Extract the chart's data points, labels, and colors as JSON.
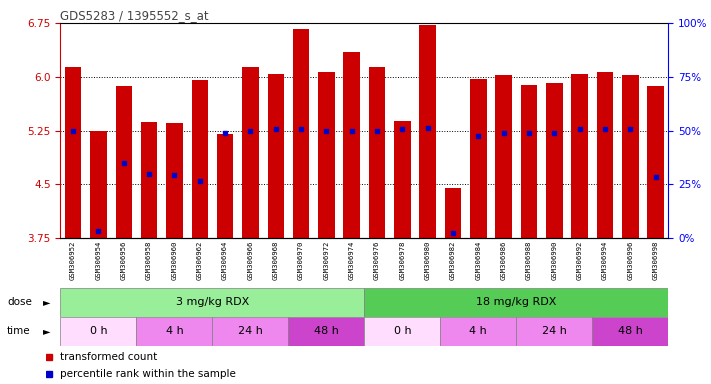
{
  "title": "GDS5283 / 1395552_s_at",
  "samples": [
    "GSM306952",
    "GSM306954",
    "GSM306956",
    "GSM306958",
    "GSM306960",
    "GSM306962",
    "GSM306964",
    "GSM306966",
    "GSM306968",
    "GSM306970",
    "GSM306972",
    "GSM306974",
    "GSM306976",
    "GSM306978",
    "GSM306980",
    "GSM306982",
    "GSM306984",
    "GSM306986",
    "GSM306988",
    "GSM306990",
    "GSM306992",
    "GSM306994",
    "GSM306996",
    "GSM306998"
  ],
  "bar_heights": [
    6.13,
    5.25,
    5.87,
    5.37,
    5.36,
    5.95,
    5.2,
    6.13,
    6.04,
    6.67,
    6.07,
    6.35,
    6.14,
    5.38,
    6.72,
    4.45,
    5.97,
    6.02,
    5.88,
    5.92,
    6.04,
    6.07,
    6.02,
    5.87
  ],
  "blue_dot_y": [
    5.25,
    3.85,
    4.8,
    4.65,
    4.63,
    4.55,
    5.22,
    5.25,
    5.27,
    5.27,
    5.25,
    5.25,
    5.25,
    5.27,
    5.28,
    3.82,
    5.18,
    5.22,
    5.22,
    5.22,
    5.27,
    5.27,
    5.27,
    4.6
  ],
  "y_min": 3.75,
  "y_max": 6.75,
  "y_ticks": [
    3.75,
    4.5,
    5.25,
    6.0,
    6.75
  ],
  "right_y_ticks": [
    0,
    25,
    50,
    75,
    100
  ],
  "bar_color": "#cc0000",
  "dot_color": "#0000cc",
  "dose_groups": [
    {
      "label": "3 mg/kg RDX",
      "start": 0,
      "end": 12,
      "color": "#99ee99"
    },
    {
      "label": "18 mg/kg RDX",
      "start": 12,
      "end": 24,
      "color": "#55cc55"
    }
  ],
  "time_colors": [
    "#ffddff",
    "#ee88ee",
    "#ee88ee",
    "#cc44cc",
    "#ffddff",
    "#ee88ee",
    "#ee88ee",
    "#cc44cc"
  ],
  "time_groups": [
    {
      "label": "0 h",
      "start": 0,
      "end": 3
    },
    {
      "label": "4 h",
      "start": 3,
      "end": 6
    },
    {
      "label": "24 h",
      "start": 6,
      "end": 9
    },
    {
      "label": "48 h",
      "start": 9,
      "end": 12
    },
    {
      "label": "0 h",
      "start": 12,
      "end": 15
    },
    {
      "label": "4 h",
      "start": 15,
      "end": 18
    },
    {
      "label": "24 h",
      "start": 18,
      "end": 21
    },
    {
      "label": "48 h",
      "start": 21,
      "end": 24
    }
  ],
  "bar_color_red": "#cc0000",
  "dot_color_blue": "#0000cc",
  "xlabel_color": "#cc0000",
  "title_color": "#444444",
  "sample_bg": "#dddddd"
}
